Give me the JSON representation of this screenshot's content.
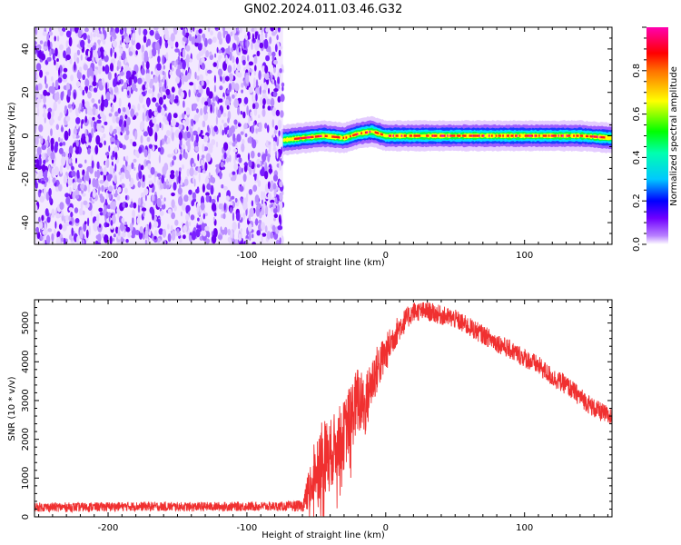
{
  "figure": {
    "title": "GN02.2024.011.03.46.G32"
  },
  "chart_data": [
    {
      "type": "heatmap",
      "xlabel": "Height of straight line (km)",
      "ylabel": "Frequency (Hz)",
      "xlim": [
        -253,
        163
      ],
      "ylim": [
        -50,
        50
      ],
      "x_ticks": [
        -200,
        -100,
        0,
        100
      ],
      "x_tick_labels": [
        "-200",
        "-100",
        "0",
        "100"
      ],
      "y_ticks": [
        -40,
        -20,
        0,
        20,
        40
      ],
      "y_tick_labels": [
        "-40",
        "-20",
        "0",
        "20",
        "40"
      ],
      "noise_region_x": [
        -253,
        -74
      ],
      "signal_track_x": [
        -74,
        163
      ],
      "signal_track_freq": [
        [
          -74,
          -2
        ],
        [
          -60,
          -1
        ],
        [
          -45,
          0
        ],
        [
          -30,
          -1
        ],
        [
          -20,
          1
        ],
        [
          -10,
          2
        ],
        [
          0,
          0
        ],
        [
          20,
          0
        ],
        [
          50,
          0
        ],
        [
          100,
          0
        ],
        [
          140,
          0
        ],
        [
          163,
          -1
        ]
      ],
      "colorbar": {
        "label": "Normalized spectral amplitude",
        "range": [
          0,
          1
        ],
        "ticks": [
          0.0,
          0.2,
          0.4,
          0.6,
          0.8
        ],
        "tick_labels": [
          "0.0",
          "0.2",
          "0.4",
          "0.6",
          "0.8"
        ],
        "colormap": [
          "#ffffff",
          "#7000ff",
          "#0000ff",
          "#00ffff",
          "#00ff00",
          "#ffff00",
          "#ff0000",
          "#ff00cc"
        ]
      },
      "grid": false
    },
    {
      "type": "line",
      "xlabel": "Height of straight line (km)",
      "ylabel": "SNR (10 * v/v)",
      "xlim": [
        -253,
        163
      ],
      "ylim": [
        0,
        5600
      ],
      "x_ticks": [
        -200,
        -100,
        0,
        100
      ],
      "x_tick_labels": [
        "-200",
        "-100",
        "0",
        "100"
      ],
      "y_ticks": [
        0,
        1000,
        2000,
        3000,
        4000,
        5000
      ],
      "y_tick_labels": [
        "0",
        "1000",
        "2000",
        "3000",
        "4000",
        "5000"
      ],
      "series": [
        {
          "color": "#f03030",
          "x": [
            -253,
            -220,
            -180,
            -140,
            -100,
            -75,
            -60,
            -55,
            -50,
            -45,
            -40,
            -35,
            -30,
            -25,
            -20,
            -15,
            -10,
            -5,
            0,
            5,
            10,
            15,
            20,
            30,
            40,
            50,
            60,
            70,
            80,
            90,
            100,
            110,
            120,
            130,
            140,
            150,
            163
          ],
          "y": [
            250,
            250,
            270,
            260,
            270,
            270,
            280,
            700,
            1300,
            1500,
            1600,
            1900,
            2100,
            2600,
            3000,
            2800,
            3500,
            3900,
            4200,
            4600,
            4900,
            5100,
            5300,
            5300,
            5200,
            5100,
            4900,
            4700,
            4500,
            4300,
            4100,
            3900,
            3600,
            3400,
            3100,
            2800,
            2550
          ],
          "noise_amplitude": [
            120,
            120,
            120,
            120,
            120,
            120,
            150,
            600,
            900,
            1000,
            900,
            900,
            900,
            900,
            900,
            800,
            700,
            600,
            500,
            400,
            350,
            300,
            250,
            250,
            250,
            250,
            250,
            250,
            250,
            250,
            250,
            250,
            250,
            250,
            250,
            250,
            250
          ]
        }
      ],
      "grid": false
    }
  ]
}
